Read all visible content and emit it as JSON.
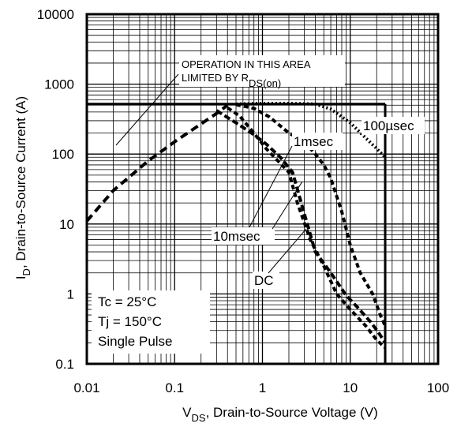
{
  "chart_data": {
    "type": "line",
    "title": "",
    "x_scale": "log",
    "y_scale": "log",
    "xlim": [
      0.01,
      100
    ],
    "ylim": [
      0.1,
      10000
    ],
    "grid": true,
    "x_ticks": [
      "0.01",
      "0.1",
      "1",
      "10",
      "100"
    ],
    "y_ticks": [
      "0.1",
      "1",
      "10",
      "100",
      "1000",
      "10000"
    ],
    "xlabel": {
      "main": "V",
      "sub": "DS",
      "rest": ", Drain-to-Source Voltage (V)"
    },
    "ylabel": {
      "main": "I",
      "sub": "D",
      "rest": ",  Drain-to-Source Current (A)"
    },
    "limit_lines": {
      "current_limit_A": 520,
      "voltage_limit_V": 25
    },
    "rds_on_line": {
      "points": [
        [
          0.01,
          11
        ],
        [
          0.02,
          30
        ],
        [
          0.05,
          80
        ],
        [
          0.1,
          150
        ],
        [
          0.2,
          270
        ],
        [
          0.3,
          380
        ],
        [
          0.4,
          500
        ]
      ]
    },
    "series": [
      {
        "name": "100µsec",
        "points": [
          [
            0.5,
            520
          ],
          [
            1,
            530
          ],
          [
            2,
            530
          ],
          [
            4,
            520
          ],
          [
            6,
            440
          ],
          [
            10,
            280
          ],
          [
            15,
            170
          ],
          [
            20,
            120
          ],
          [
            25,
            90
          ]
        ]
      },
      {
        "name": "1msec",
        "points": [
          [
            0.5,
            510
          ],
          [
            0.8,
            450
          ],
          [
            1.2,
            340
          ],
          [
            2,
            200
          ],
          [
            3,
            150
          ],
          [
            4,
            100
          ],
          [
            5,
            70
          ],
          [
            6,
            45
          ],
          [
            8,
            15
          ],
          [
            10,
            5
          ],
          [
            13,
            2
          ],
          [
            18,
            1
          ],
          [
            22,
            0.5
          ],
          [
            25,
            0.35
          ]
        ]
      },
      {
        "name": "10msec",
        "points": [
          [
            0.4,
            460
          ],
          [
            0.55,
            350
          ],
          [
            0.8,
            200
          ],
          [
            1.1,
            120
          ],
          [
            1.5,
            80
          ],
          [
            2,
            55
          ],
          [
            2.5,
            20
          ],
          [
            3.5,
            6
          ],
          [
            5,
            2.5
          ],
          [
            7,
            1
          ],
          [
            10,
            0.6
          ],
          [
            15,
            0.35
          ],
          [
            20,
            0.22
          ],
          [
            25,
            0.17
          ]
        ]
      },
      {
        "name": "DC",
        "points": [
          [
            0.3,
            420
          ],
          [
            0.5,
            280
          ],
          [
            0.75,
            200
          ],
          [
            1.1,
            140
          ],
          [
            1.6,
            90
          ],
          [
            2.2,
            55
          ],
          [
            3,
            14
          ],
          [
            4,
            4
          ],
          [
            6,
            2
          ],
          [
            9,
            0.95
          ],
          [
            12,
            0.65
          ],
          [
            17,
            0.4
          ],
          [
            21,
            0.28
          ],
          [
            25,
            0.2
          ]
        ]
      }
    ],
    "annotations": {
      "operation_area": {
        "line1": "OPERATION IN THIS AREA",
        "line2": "LIMITED BY R",
        "sub": "DS(on)"
      },
      "conditions": [
        "Tc = 25°C",
        "Tj = 150°C",
        "Single Pulse"
      ],
      "labels": {
        "100us": "100µsec",
        "1ms": "1msec",
        "10ms": "10msec",
        "dc": "DC"
      }
    }
  }
}
